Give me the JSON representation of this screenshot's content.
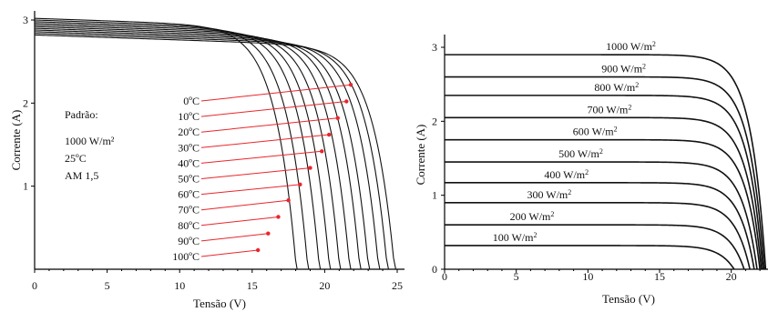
{
  "colors": {
    "curve": "#111111",
    "marker": "#e8262c",
    "background": "#ffffff"
  },
  "chart_data": [
    {
      "type": "line",
      "title": "",
      "xlabel": "Tensão (V)",
      "ylabel": "Corrente (A)",
      "xlim": [
        0,
        25
      ],
      "ylim": [
        0,
        3.1
      ],
      "xticks": [
        "0",
        "5",
        "10",
        "15",
        "20",
        "25"
      ],
      "yticks": [
        "1",
        "2",
        "3"
      ],
      "annotation_lines": [
        "Padrão:",
        "1000 W/m²",
        "25ºC",
        "AM 1,5"
      ],
      "series": [
        {
          "name": "0ºC",
          "isc": 2.82,
          "voc": 24.9,
          "marker": [
            21.8,
            2.22
          ]
        },
        {
          "name": "10ºC",
          "isc": 2.84,
          "voc": 24.4,
          "marker": [
            21.5,
            2.02
          ]
        },
        {
          "name": "20ºC",
          "isc": 2.86,
          "voc": 23.8,
          "marker": [
            20.9,
            1.82
          ]
        },
        {
          "name": "30ºC",
          "isc": 2.88,
          "voc": 23.1,
          "marker": [
            20.3,
            1.62
          ]
        },
        {
          "name": "40ºC",
          "isc": 2.9,
          "voc": 22.5,
          "marker": [
            19.8,
            1.42
          ]
        },
        {
          "name": "50ºC",
          "isc": 2.92,
          "voc": 21.8,
          "marker": [
            19.0,
            1.22
          ]
        },
        {
          "name": "60ºC",
          "isc": 2.94,
          "voc": 21.1,
          "marker": [
            18.3,
            1.02
          ]
        },
        {
          "name": "70ºC",
          "isc": 2.96,
          "voc": 20.4,
          "marker": [
            17.5,
            0.83
          ]
        },
        {
          "name": "80ºC",
          "isc": 2.98,
          "voc": 19.7,
          "marker": [
            16.8,
            0.63
          ]
        },
        {
          "name": "90ºC",
          "isc": 3.0,
          "voc": 18.9,
          "marker": [
            16.1,
            0.43
          ]
        },
        {
          "name": "100ºC",
          "isc": 3.02,
          "voc": 18.1,
          "marker": [
            15.4,
            0.23
          ]
        }
      ]
    },
    {
      "type": "line",
      "title": "",
      "xlabel": "Tensão (V)",
      "ylabel": "Corrente (A)",
      "xlim": [
        0,
        22.5
      ],
      "ylim": [
        0,
        3.1
      ],
      "xticks": [
        "0",
        "5",
        "10",
        "15",
        "20"
      ],
      "yticks": [
        "1",
        "2",
        "3"
      ],
      "series": [
        {
          "name": "1000 W/m",
          "sup": "2",
          "isc": 2.9,
          "voc": 22.4,
          "label_x": 13.0
        },
        {
          "name": "900 W/m",
          "sup": "2",
          "isc": 2.6,
          "voc": 22.3,
          "label_x": 12.5
        },
        {
          "name": "800 W/m",
          "sup": "2",
          "isc": 2.35,
          "voc": 22.2,
          "label_x": 12.0
        },
        {
          "name": "700 W/m",
          "sup": "2",
          "isc": 2.05,
          "voc": 22.1,
          "label_x": 11.5
        },
        {
          "name": "600 W/m",
          "sup": "2",
          "isc": 1.75,
          "voc": 22.0,
          "label_x": 10.5
        },
        {
          "name": "500 W/m",
          "sup": "2",
          "isc": 1.45,
          "voc": 21.8,
          "label_x": 9.5
        },
        {
          "name": "400 W/m",
          "sup": "2",
          "isc": 1.17,
          "voc": 21.6,
          "label_x": 8.5
        },
        {
          "name": "300 W/m",
          "sup": "2",
          "isc": 0.9,
          "voc": 21.3,
          "label_x": 7.3
        },
        {
          "name": "200 W/m",
          "sup": "2",
          "isc": 0.6,
          "voc": 20.9,
          "label_x": 6.1
        },
        {
          "name": "100 W/m",
          "sup": "2",
          "isc": 0.32,
          "voc": 20.2,
          "label_x": 4.9
        }
      ]
    }
  ]
}
